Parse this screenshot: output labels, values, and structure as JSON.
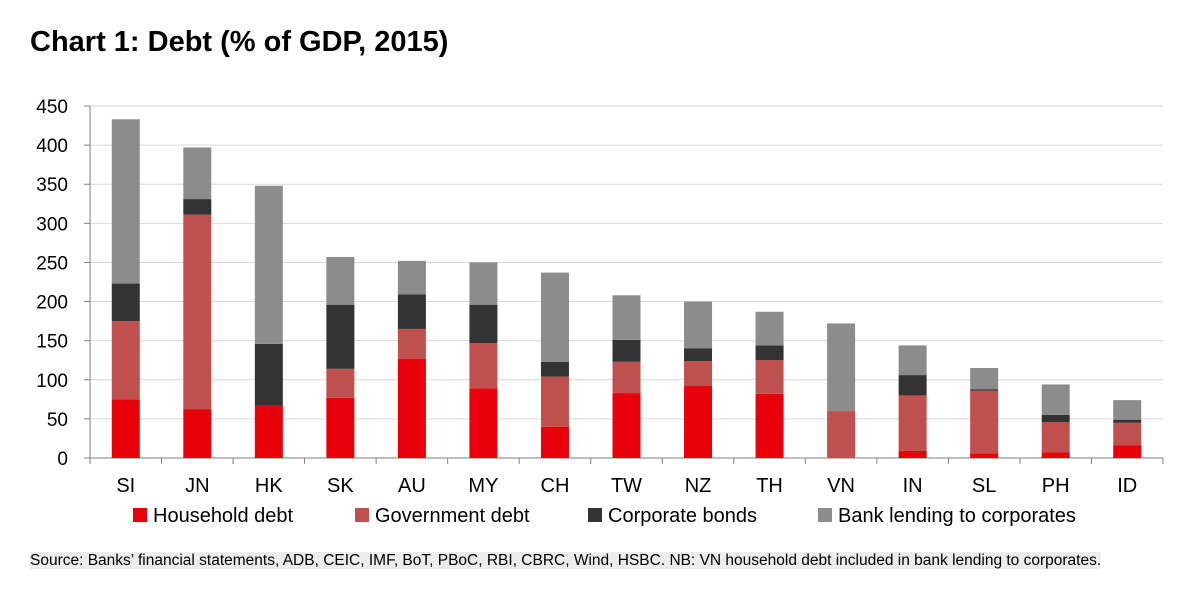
{
  "chart_data": {
    "type": "bar",
    "stacked": true,
    "title": "Chart 1: Debt (% of GDP, 2015)",
    "xlabel": "",
    "ylabel": "",
    "ylim": [
      0,
      450
    ],
    "yticks": [
      0,
      50,
      100,
      150,
      200,
      250,
      300,
      350,
      400,
      450
    ],
    "grid": true,
    "legend_position": "bottom",
    "categories": [
      "SI",
      "JN",
      "HK",
      "SK",
      "AU",
      "MY",
      "CH",
      "TW",
      "NZ",
      "TH",
      "VN",
      "IN",
      "SL",
      "PH",
      "ID"
    ],
    "series": [
      {
        "name": "Household debt",
        "color": "#e8000b",
        "values": [
          75,
          62,
          67,
          77,
          127,
          89,
          40,
          83,
          92,
          82,
          0,
          9,
          6,
          7,
          16
        ]
      },
      {
        "name": "Government debt",
        "color": "#c0504d",
        "values": [
          100,
          249,
          0,
          37,
          38,
          58,
          64,
          40,
          32,
          43,
          60,
          71,
          80,
          39,
          29
        ]
      },
      {
        "name": "Corporate bonds",
        "color": "#333333",
        "values": [
          48,
          20,
          79,
          82,
          44,
          49,
          19,
          28,
          16,
          19,
          0,
          26,
          2,
          9,
          4
        ]
      },
      {
        "name": "Bank lending to corporates",
        "color": "#8c8c8c",
        "values": [
          210,
          66,
          202,
          61,
          43,
          54,
          114,
          57,
          60,
          43,
          112,
          38,
          27,
          39,
          25
        ]
      }
    ]
  },
  "source": {
    "text": "Source: Banks’ financial statements, ADB, CEIC, IMF, BoT, PBoC, RBI, CBRC, Wind, HSBC. NB: VN household debt included in bank lending to corporates."
  }
}
